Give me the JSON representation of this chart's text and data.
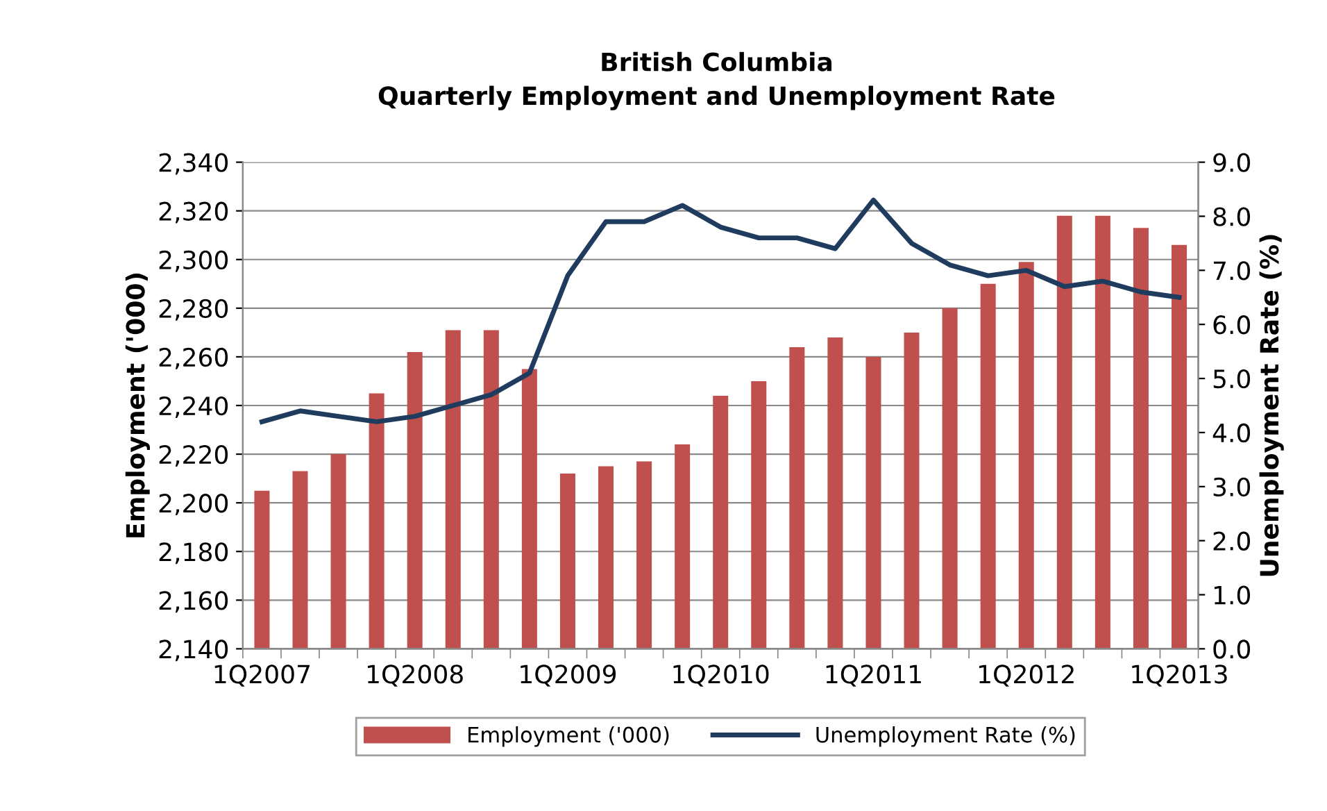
{
  "chart_data": {
    "type": "bar",
    "title": "British Columbia\nQuarterly Employment and Unemployment Rate",
    "ylabel": "Employment ('000)",
    "y2label": "Unemployment Rate (%)",
    "categories": [
      "1Q2007",
      null,
      null,
      null,
      "1Q2008",
      null,
      null,
      null,
      "1Q2009",
      null,
      null,
      null,
      "1Q2010",
      null,
      null,
      null,
      "1Q2011",
      null,
      null,
      null,
      "1Q2012",
      null,
      null,
      null,
      "1Q2013"
    ],
    "series": [
      {
        "name": "Employment ('000)",
        "color": "#c0504d",
        "values": [
          2205,
          2213,
          2220,
          2245,
          2262,
          2271,
          2271,
          2255,
          2212,
          2215,
          2217,
          2224,
          2244,
          2250,
          2264,
          2268,
          2260,
          2270,
          2280,
          2290,
          2299,
          2318,
          2318,
          2313,
          2306
        ]
      },
      {
        "name": "Unemployment Rate (%)",
        "type": "line",
        "axis": "y2",
        "color": "#1f3b5e",
        "values": [
          4.2,
          4.4,
          4.3,
          4.2,
          4.3,
          4.5,
          4.7,
          5.1,
          6.9,
          7.9,
          7.9,
          8.2,
          7.8,
          7.6,
          7.6,
          7.4,
          8.3,
          7.5,
          7.1,
          6.9,
          7.0,
          6.7,
          6.8,
          6.6,
          6.5
        ]
      }
    ],
    "ylim": [
      2140,
      2340
    ],
    "yticks": [
      {
        "value": 2140,
        "label": "2,140"
      },
      {
        "value": 2160,
        "label": "2,160"
      },
      {
        "value": 2180,
        "label": "2,180"
      },
      {
        "value": 2200,
        "label": "2,200"
      },
      {
        "value": 2220,
        "label": "2,220"
      },
      {
        "value": 2240,
        "label": "2,240"
      },
      {
        "value": 2260,
        "label": "2,260"
      },
      {
        "value": 2280,
        "label": "2,280"
      },
      {
        "value": 2300,
        "label": "2,300"
      },
      {
        "value": 2320,
        "label": "2,320"
      },
      {
        "value": 2340,
        "label": "2,340"
      }
    ],
    "y2lim": [
      0,
      9
    ],
    "y2ticks": [
      {
        "value": 0,
        "label": "0.0"
      },
      {
        "value": 1,
        "label": "1.0"
      },
      {
        "value": 2,
        "label": "2.0"
      },
      {
        "value": 3,
        "label": "3.0"
      },
      {
        "value": 4,
        "label": "4.0"
      },
      {
        "value": 5,
        "label": "5.0"
      },
      {
        "value": 6,
        "label": "6.0"
      },
      {
        "value": 7,
        "label": "7.0"
      },
      {
        "value": 8,
        "label": "8.0"
      },
      {
        "value": 9,
        "label": "9.0"
      }
    ],
    "grid": "y",
    "legend": "bottom",
    "marker": "none",
    "line_style": "solid"
  }
}
